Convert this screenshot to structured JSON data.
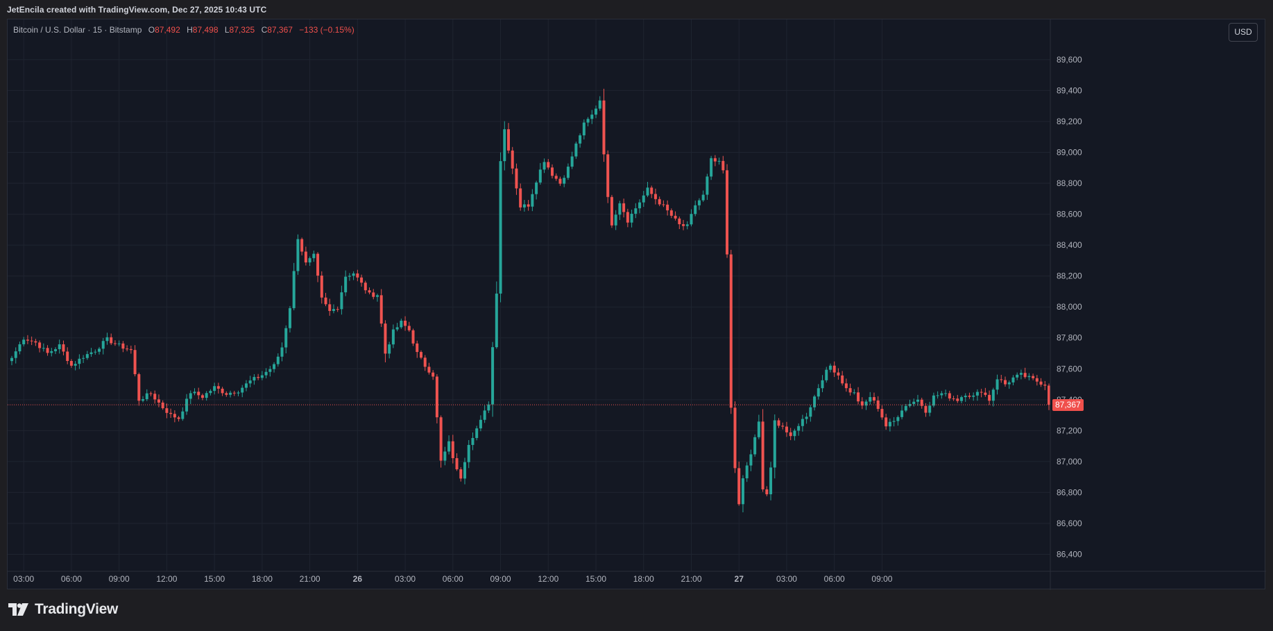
{
  "attribution": "JetEncila created with TradingView.com, Dec 27, 2025 10:43 UTC",
  "legend": {
    "symbol": "Bitcoin / U.S. Dollar · 15 · Bitstamp",
    "open_label": "O",
    "open": "87,492",
    "high_label": "H",
    "high": "87,498",
    "low_label": "L",
    "low": "87,325",
    "close_label": "C",
    "close": "87,367",
    "change": "−133 (−0.15%)"
  },
  "currency": "USD",
  "last_price_label": "87,367",
  "brand": {
    "name": "TradingView"
  },
  "colors": {
    "up": "#26a69a",
    "down": "#ef5350",
    "grid": "#1f2430",
    "axis_text": "#b2b5be",
    "background": "#141823",
    "last_price_line": "#ef5350"
  },
  "chart_data": {
    "type": "candlestick",
    "title": "Bitcoin / U.S. Dollar · 15 · Bitstamp",
    "x_ticks": [
      "03:00",
      "06:00",
      "09:00",
      "12:00",
      "15:00",
      "18:00",
      "21:00",
      "26",
      "03:00",
      "06:00",
      "09:00",
      "12:00",
      "15:00",
      "18:00",
      "21:00",
      "27",
      "03:00",
      "06:00",
      "09:00"
    ],
    "y_ticks": [
      86400,
      86600,
      86800,
      87000,
      87200,
      87400,
      87600,
      87800,
      88000,
      88200,
      88400,
      88600,
      88800,
      89000,
      89200,
      89400,
      89600
    ],
    "ylim": [
      86290,
      89860
    ],
    "last_price": 87367,
    "grid": true,
    "anchors": [
      [
        0,
        87670
      ],
      [
        3,
        87800
      ],
      [
        6,
        87770
      ],
      [
        9,
        87700
      ],
      [
        12,
        87750
      ],
      [
        15,
        87620
      ],
      [
        18,
        87680
      ],
      [
        21,
        87720
      ],
      [
        24,
        87790
      ],
      [
        27,
        87750
      ],
      [
        30,
        87720
      ],
      [
        32,
        87400
      ],
      [
        35,
        87440
      ],
      [
        38,
        87350
      ],
      [
        40,
        87300
      ],
      [
        42,
        87280
      ],
      [
        45,
        87450
      ],
      [
        48,
        87420
      ],
      [
        51,
        87480
      ],
      [
        54,
        87440
      ],
      [
        57,
        87460
      ],
      [
        60,
        87520
      ],
      [
        63,
        87560
      ],
      [
        66,
        87620
      ],
      [
        68,
        87740
      ],
      [
        70,
        88000
      ],
      [
        72,
        88450
      ],
      [
        74,
        88280
      ],
      [
        76,
        88330
      ],
      [
        78,
        88050
      ],
      [
        80,
        87970
      ],
      [
        82,
        88000
      ],
      [
        84,
        88200
      ],
      [
        86,
        88220
      ],
      [
        88,
        88150
      ],
      [
        90,
        88080
      ],
      [
        92,
        88080
      ],
      [
        94,
        87700
      ],
      [
        96,
        87840
      ],
      [
        98,
        87900
      ],
      [
        100,
        87850
      ],
      [
        102,
        87700
      ],
      [
        104,
        87620
      ],
      [
        106,
        87560
      ],
      [
        108,
        87000
      ],
      [
        110,
        87120
      ],
      [
        112,
        86940
      ],
      [
        113,
        86900
      ],
      [
        115,
        87120
      ],
      [
        118,
        87260
      ],
      [
        120,
        87380
      ],
      [
        122,
        88100
      ],
      [
        123,
        88950
      ],
      [
        124,
        89150
      ],
      [
        126,
        88900
      ],
      [
        128,
        88650
      ],
      [
        130,
        88660
      ],
      [
        132,
        88820
      ],
      [
        134,
        88950
      ],
      [
        136,
        88860
      ],
      [
        138,
        88800
      ],
      [
        140,
        88900
      ],
      [
        142,
        89050
      ],
      [
        144,
        89180
      ],
      [
        146,
        89240
      ],
      [
        148,
        89340
      ],
      [
        149,
        89000
      ],
      [
        150,
        88700
      ],
      [
        151,
        88540
      ],
      [
        153,
        88680
      ],
      [
        155,
        88560
      ],
      [
        157,
        88640
      ],
      [
        160,
        88760
      ],
      [
        162,
        88700
      ],
      [
        164,
        88650
      ],
      [
        166,
        88590
      ],
      [
        168,
        88530
      ],
      [
        170,
        88520
      ],
      [
        172,
        88660
      ],
      [
        174,
        88720
      ],
      [
        176,
        88950
      ],
      [
        178,
        88930
      ],
      [
        179,
        88880
      ],
      [
        180,
        88330
      ],
      [
        181,
        87350
      ],
      [
        182,
        86970
      ],
      [
        183,
        86710
      ],
      [
        184,
        86890
      ],
      [
        186,
        87050
      ],
      [
        188,
        87250
      ],
      [
        189,
        86820
      ],
      [
        190,
        86790
      ],
      [
        191,
        86950
      ],
      [
        192,
        87260
      ],
      [
        194,
        87230
      ],
      [
        196,
        87150
      ],
      [
        198,
        87240
      ],
      [
        200,
        87300
      ],
      [
        202,
        87420
      ],
      [
        204,
        87540
      ],
      [
        206,
        87620
      ],
      [
        208,
        87560
      ],
      [
        210,
        87470
      ],
      [
        212,
        87440
      ],
      [
        214,
        87350
      ],
      [
        216,
        87420
      ],
      [
        218,
        87350
      ],
      [
        220,
        87230
      ],
      [
        222,
        87260
      ],
      [
        224,
        87340
      ],
      [
        226,
        87380
      ],
      [
        228,
        87400
      ],
      [
        230,
        87330
      ],
      [
        232,
        87420
      ],
      [
        234,
        87440
      ],
      [
        236,
        87420
      ],
      [
        238,
        87400
      ],
      [
        240,
        87440
      ],
      [
        242,
        87420
      ],
      [
        244,
        87460
      ],
      [
        246,
        87400
      ],
      [
        248,
        87540
      ],
      [
        250,
        87500
      ],
      [
        252,
        87540
      ],
      [
        254,
        87560
      ],
      [
        256,
        87540
      ],
      [
        258,
        87520
      ],
      [
        260,
        87500
      ],
      [
        261,
        87367
      ]
    ]
  }
}
